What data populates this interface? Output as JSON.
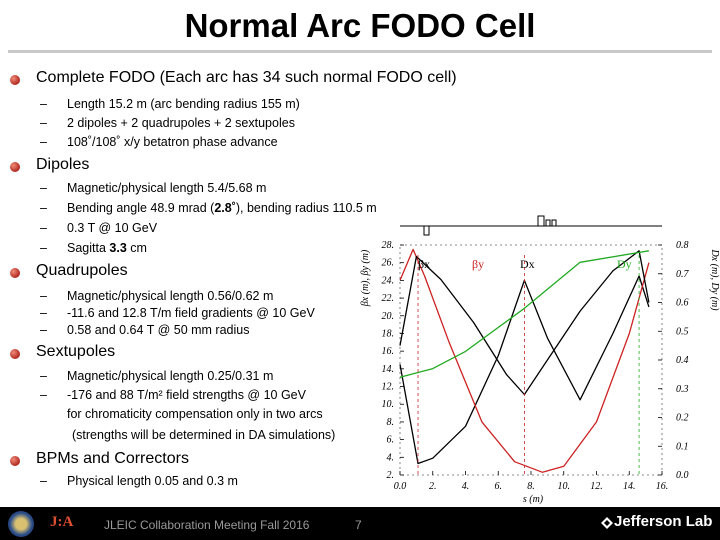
{
  "title": "Normal Arc FODO Cell",
  "sections": [
    {
      "heading": "Complete FODO (Each arc has 34 such normal FODO cell)",
      "items": [
        "Length 15.2 m (arc bending radius 155 m)",
        "2 dipoles + 2 quadrupoles + 2 sextupoles",
        "108˚/108˚ x/y betatron phase advance"
      ]
    },
    {
      "heading": "Dipoles",
      "items": [
        "Magnetic/physical length 5.4/5.68 m",
        {
          "pre": "Bending angle 48.9 mrad (",
          "bold": "2.8˚",
          "post": "), bending radius 110.5 m"
        },
        "0.3 T @ 10 GeV",
        {
          "pre": "Sagitta ",
          "bold": "3.3",
          "post": " cm"
        }
      ]
    },
    {
      "heading": "Quadrupoles",
      "items": [
        "Magnetic/physical length 0.56/0.62 m",
        "-11.6 and 12.8 T/m field gradients @ 10 GeV",
        "0.58 and 0.64 T @ 50 mm radius"
      ]
    },
    {
      "heading": "Sextupoles",
      "items": [
        "Magnetic/physical length 0.25/0.31 m",
        "-176 and 88 T/m² field strengths @ 10 GeV"
      ],
      "continuation": [
        "for chromaticity compensation only in two arcs",
        "(strengths will be determined in DA simulations)"
      ]
    },
    {
      "heading": "BPMs and Correctors",
      "items": [
        "Physical length 0.05 and 0.3 m"
      ]
    }
  ],
  "bullet_dash": "–",
  "footer": {
    "meeting": "JLEIC Collaboration Meeting Fall 2016",
    "page_number": "7",
    "lab": "Jefferson Lab",
    "logo_text": "J:A"
  },
  "chart_data": {
    "type": "line",
    "xlabel": "s (m)",
    "ylabel_left": "βx (m), βy (m)",
    "ylabel_right": "Dx (m), Dy (m)",
    "xlim": [
      0,
      16
    ],
    "ylim_left": [
      2,
      28
    ],
    "ylim_right": [
      0,
      0.8
    ],
    "x_ticks": [
      "0.0",
      "2.",
      "4.",
      "6.",
      "8.",
      "10.",
      "12.",
      "14.",
      "16."
    ],
    "y_ticks_left": [
      "2.",
      "4.",
      "6.",
      "8.",
      "10.",
      "12.",
      "14.",
      "16.",
      "18.",
      "20.",
      "22.",
      "24.",
      "26.",
      "28."
    ],
    "y_ticks_right": [
      "0.0",
      "0.1",
      "0.2",
      "0.3",
      "0.4",
      "0.5",
      "0.6",
      "0.7",
      "0.8"
    ],
    "legend": [
      "βx",
      "βy",
      "Dx",
      "Dy"
    ],
    "colors": {
      "beta_x": "#000000",
      "beta_y": "#cc2222",
      "d_x": "#000000",
      "d_y": "#22aa22"
    },
    "series": [
      {
        "name": "βx",
        "x": [
          0,
          1.1,
          2.0,
          4.0,
          6.0,
          7.6,
          9.0,
          11.0,
          13.0,
          14.6,
          15.2
        ],
        "y": [
          14.5,
          3.3,
          3.9,
          7.5,
          15.5,
          24.0,
          17.5,
          10.5,
          18.0,
          24.5,
          21.0
        ]
      },
      {
        "name": "βy",
        "x": [
          0,
          0.8,
          1.5,
          3.0,
          5.0,
          7.0,
          8.7,
          10.0,
          12.0,
          14.0,
          15.2
        ],
        "y": [
          24.0,
          27.5,
          24.5,
          17.0,
          8.0,
          3.5,
          2.3,
          3.0,
          8.0,
          18.0,
          26.0
        ]
      },
      {
        "name": "Dx",
        "x": [
          0,
          1.0,
          2.5,
          4.5,
          6.5,
          7.6,
          9.0,
          11.0,
          13.0,
          14.6,
          15.2
        ],
        "y": [
          0.45,
          0.76,
          0.68,
          0.53,
          0.35,
          0.28,
          0.4,
          0.57,
          0.71,
          0.78,
          0.6
        ]
      },
      {
        "name": "Dy",
        "x": [
          0,
          2.0,
          4.0,
          7.6,
          11.0,
          15.2
        ],
        "y": [
          0.34,
          0.37,
          0.43,
          0.58,
          0.74,
          0.78
        ]
      }
    ]
  }
}
